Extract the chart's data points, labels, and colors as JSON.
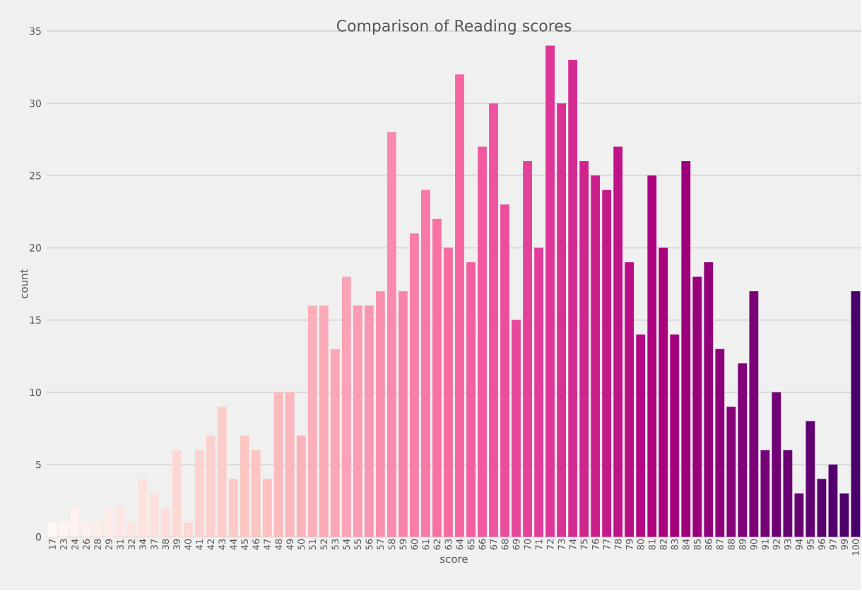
{
  "chart_data": {
    "type": "bar",
    "title": "Comparison of Reading scores",
    "xlabel": "score",
    "ylabel": "count",
    "categories": [
      "17",
      "23",
      "24",
      "26",
      "28",
      "29",
      "31",
      "32",
      "34",
      "37",
      "38",
      "39",
      "40",
      "41",
      "42",
      "43",
      "44",
      "45",
      "46",
      "47",
      "48",
      "49",
      "50",
      "51",
      "52",
      "53",
      "54",
      "55",
      "56",
      "57",
      "58",
      "59",
      "60",
      "61",
      "62",
      "63",
      "64",
      "65",
      "66",
      "67",
      "68",
      "69",
      "70",
      "71",
      "72",
      "73",
      "74",
      "75",
      "76",
      "77",
      "78",
      "79",
      "80",
      "81",
      "82",
      "83",
      "84",
      "85",
      "86",
      "87",
      "88",
      "89",
      "90",
      "91",
      "92",
      "93",
      "94",
      "95",
      "96",
      "97",
      "99",
      "100"
    ],
    "values": [
      1,
      1,
      2,
      1,
      1,
      2,
      2,
      1,
      4,
      3,
      2,
      6,
      1,
      6,
      7,
      9,
      4,
      7,
      6,
      4,
      10,
      10,
      7,
      16,
      16,
      13,
      18,
      16,
      16,
      17,
      28,
      17,
      21,
      24,
      22,
      20,
      32,
      19,
      27,
      30,
      23,
      15,
      26,
      20,
      34,
      30,
      33,
      26,
      25,
      24,
      27,
      19,
      14,
      25,
      20,
      14,
      26,
      18,
      19,
      13,
      9,
      12,
      17,
      6,
      10,
      6,
      3,
      8,
      4,
      5,
      3,
      17
    ],
    "colors": [
      "#fff7f3",
      "#fff4f0",
      "#fef2ee",
      "#feefec",
      "#feede9",
      "#feeae7",
      "#fee7e4",
      "#fde5e2",
      "#fde2df",
      "#fde0dd",
      "#fddddb",
      "#fdd9d6",
      "#fdd7d3",
      "#fcd3d0",
      "#fcd0cc",
      "#fccdc9",
      "#fccac6",
      "#fcc7c2",
      "#fcc4c0",
      "#fcc0be",
      "#fbbbbd",
      "#fbb7bc",
      "#fbb3bb",
      "#fbafb9",
      "#fbaab8",
      "#faa6b7",
      "#faa2b6",
      "#fa9db4",
      "#f997b2",
      "#f990b0",
      "#f98aad",
      "#f984ab",
      "#f87ea9",
      "#f878a7",
      "#f871a4",
      "#f76ba2",
      "#f665a0",
      "#f35f9f",
      "#f0599e",
      "#ed549d",
      "#ea4e9c",
      "#e7489b",
      "#e44299",
      "#e13c99",
      "#de3697",
      "#da3095",
      "#d42b92",
      "#cf258f",
      "#ca1f8d",
      "#c4198a",
      "#bf1487",
      "#ba0e84",
      "#b50882",
      "#af027f",
      "#aa017d",
      "#a4017d",
      "#9e017c",
      "#98017b",
      "#92017a",
      "#8c0179",
      "#860179",
      "#810178",
      "#7b0177",
      "#750176",
      "#700174",
      "#6a0173",
      "#650171",
      "#5f0070",
      "#5a006e",
      "#54006d",
      "#4f006b",
      "#49006a"
    ],
    "ylim": [
      0,
      35
    ],
    "yticks": [
      0,
      5,
      10,
      15,
      20,
      25,
      30,
      35
    ],
    "grid": "y"
  }
}
